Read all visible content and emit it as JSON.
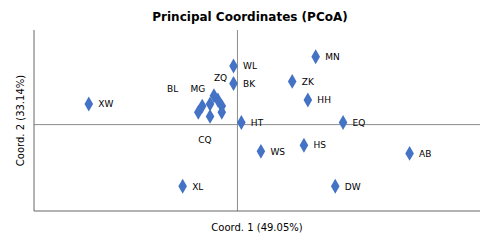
{
  "chart_data": {
    "type": "scatter",
    "title": "Principal Coordinates (PCoA)",
    "x_label": "Coord. 1 (49.05%)",
    "y_label": "Coord. 2 (33.14%)",
    "xlim": [
      -0.52,
      0.62
    ],
    "ylim": [
      -0.42,
      0.46
    ],
    "tick_labels": false,
    "grid": false,
    "color": "#4472C4",
    "marker": "diamond",
    "points": [
      {
        "label": "WL",
        "x": -0.01,
        "y": 0.285
      },
      {
        "label": "MN",
        "x": 0.2,
        "y": 0.33
      },
      {
        "label": "BK",
        "x": -0.01,
        "y": 0.2
      },
      {
        "label": "ZK",
        "x": 0.14,
        "y": 0.21
      },
      {
        "label": "HH",
        "x": 0.18,
        "y": 0.12
      },
      {
        "label": "EQ",
        "x": 0.27,
        "y": 0.01
      },
      {
        "label": "HT",
        "x": 0.01,
        "y": 0.01
      },
      {
        "label": "WS",
        "x": 0.06,
        "y": -0.13
      },
      {
        "label": "HS",
        "x": 0.17,
        "y": -0.1
      },
      {
        "label": "AB",
        "x": 0.44,
        "y": -0.14
      },
      {
        "label": "DW",
        "x": 0.25,
        "y": -0.3
      },
      {
        "label": "XW",
        "x": -0.38,
        "y": 0.1
      },
      {
        "label": "XL",
        "x": -0.14,
        "y": -0.3
      },
      {
        "x": -0.06,
        "y": 0.14
      },
      {
        "x": -0.05,
        "y": 0.12
      },
      {
        "x": -0.07,
        "y": 0.1
      },
      {
        "x": -0.09,
        "y": 0.09
      },
      {
        "x": -0.04,
        "y": 0.09
      },
      {
        "x": -0.1,
        "y": 0.06
      },
      {
        "x": -0.04,
        "y": 0.06
      },
      {
        "x": -0.07,
        "y": 0.04
      }
    ],
    "annotations": [
      {
        "text": "BL",
        "x": -0.18,
        "y": 0.175
      },
      {
        "text": "MG",
        "x": -0.12,
        "y": 0.175
      },
      {
        "text": "ZQ",
        "x": -0.06,
        "y": 0.225
      },
      {
        "text": "CQ",
        "x": -0.1,
        "y": -0.075
      }
    ],
    "reference_lines": {
      "x": 0,
      "y": 0,
      "color": "#8c8c8c"
    }
  }
}
